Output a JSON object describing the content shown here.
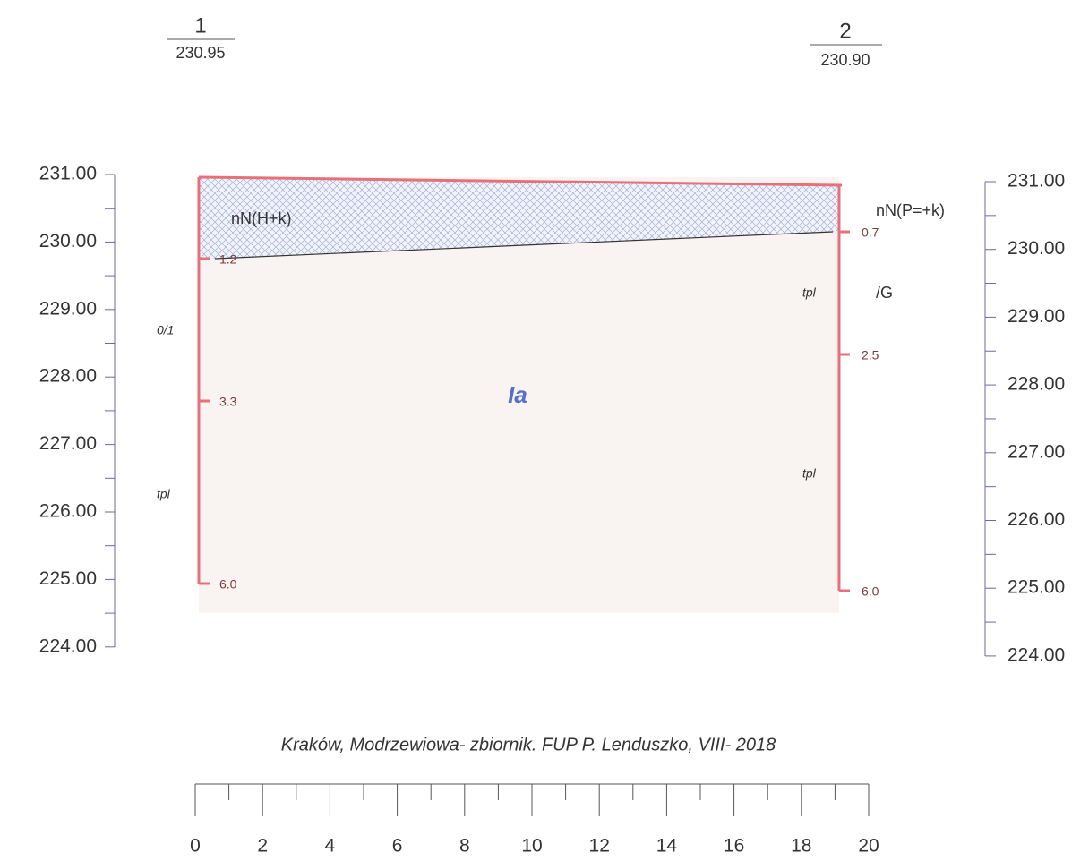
{
  "boreholes": [
    {
      "number": "1",
      "elevation": "230.95"
    },
    {
      "number": "2",
      "elevation": "230.90"
    }
  ],
  "left_axis": [
    "231.00",
    "230.00",
    "229.00",
    "228.00",
    "227.00",
    "226.00",
    "225.00",
    "224.00"
  ],
  "right_axis": [
    "231.00",
    "230.00",
    "229.00",
    "228.00",
    "227.00",
    "226.00",
    "225.00",
    "224.00"
  ],
  "borehole1_depths": [
    "1.2",
    "3.3",
    "6.0"
  ],
  "borehole2_depths": [
    "0.7",
    "2.5",
    "6.0"
  ],
  "layers": {
    "fill_left": "nN(H+k)",
    "fill_right": "nN(P=+k)",
    "main": "Ia",
    "left_state_top": "0/1",
    "left_state_bottom": "tpl",
    "right_state_top": "tpl",
    "right_state_bottom": "tpl",
    "right_water": "/G"
  },
  "scale": {
    "caption": "Kraków, Modrzewiowa- zbiornik. FUP P. Lenduszko, VIII- 2018",
    "labels": [
      "0",
      "2",
      "4",
      "6",
      "8",
      "10",
      "12",
      "14",
      "16",
      "18",
      "20"
    ]
  }
}
